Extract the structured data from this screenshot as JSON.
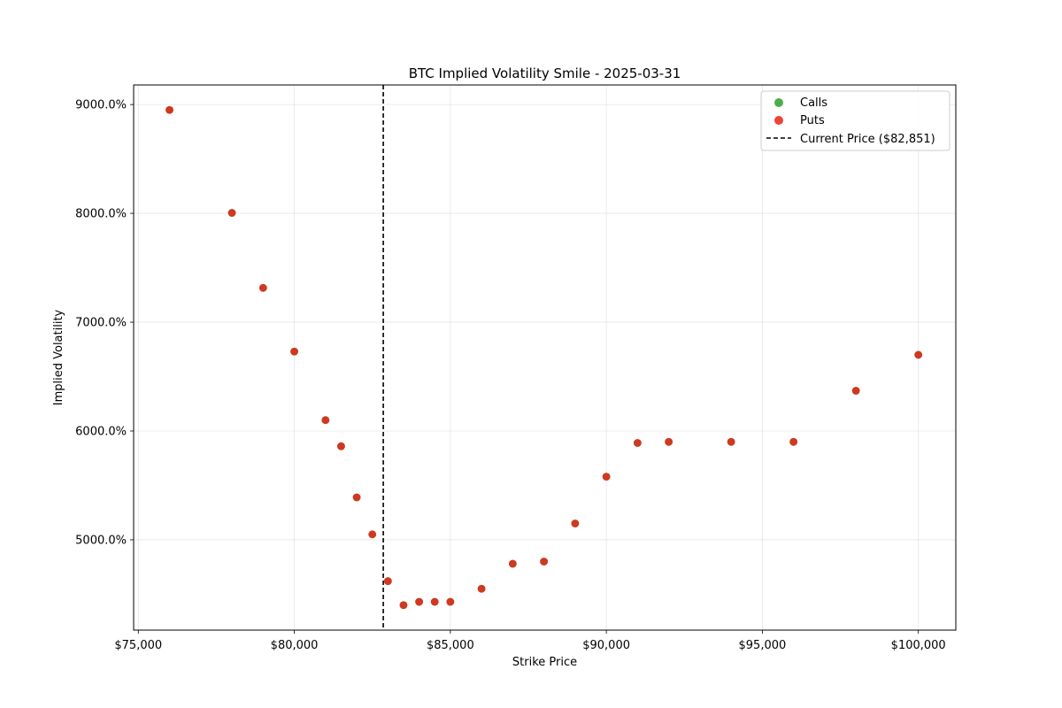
{
  "chart_data": {
    "type": "scatter",
    "title": "BTC Implied Volatility Smile - 2025-03-31",
    "xlabel": "Strike Price",
    "ylabel": "Implied Volatility",
    "xlim": [
      74850,
      101200
    ],
    "ylim": [
      4170,
      9180
    ],
    "grid": true,
    "legend_position": "top-right",
    "x_ticks": [
      {
        "value": 75000,
        "label": "$75,000"
      },
      {
        "value": 80000,
        "label": "$80,000"
      },
      {
        "value": 85000,
        "label": "$85,000"
      },
      {
        "value": 90000,
        "label": "$90,000"
      },
      {
        "value": 95000,
        "label": "$95,000"
      },
      {
        "value": 100000,
        "label": "$100,000"
      }
    ],
    "y_ticks": [
      {
        "value": 5000,
        "label": "5000.0%"
      },
      {
        "value": 6000,
        "label": "6000.0%"
      },
      {
        "value": 7000,
        "label": "7000.0%"
      },
      {
        "value": 8000,
        "label": "8000.0%"
      },
      {
        "value": 9000,
        "label": "9000.0%"
      }
    ],
    "series": [
      {
        "name": "Calls",
        "color": "#2ca02c",
        "points": [
          [
            76000,
            8950
          ],
          [
            78000,
            8005
          ],
          [
            79000,
            7315
          ],
          [
            80000,
            6730
          ],
          [
            81000,
            6100
          ],
          [
            81500,
            5860
          ],
          [
            82000,
            5390
          ],
          [
            82500,
            5050
          ],
          [
            83000,
            4620
          ],
          [
            83500,
            4400
          ],
          [
            84000,
            4430
          ],
          [
            84500,
            4430
          ],
          [
            85000,
            4430
          ],
          [
            86000,
            4550
          ],
          [
            87000,
            4780
          ],
          [
            88000,
            4800
          ],
          [
            89000,
            5150
          ],
          [
            90000,
            5580
          ],
          [
            91000,
            5890
          ],
          [
            92000,
            5900
          ],
          [
            94000,
            5900
          ],
          [
            96000,
            5900
          ],
          [
            98000,
            6370
          ],
          [
            100000,
            6700
          ]
        ]
      },
      {
        "name": "Puts",
        "color": "#e8231a",
        "points": [
          [
            76000,
            8950
          ],
          [
            78000,
            8005
          ],
          [
            79000,
            7315
          ],
          [
            80000,
            6730
          ],
          [
            81000,
            6100
          ],
          [
            81500,
            5860
          ],
          [
            82000,
            5390
          ],
          [
            82500,
            5050
          ],
          [
            83000,
            4620
          ],
          [
            83500,
            4400
          ],
          [
            84000,
            4430
          ],
          [
            84500,
            4430
          ],
          [
            85000,
            4430
          ],
          [
            86000,
            4550
          ],
          [
            87000,
            4780
          ],
          [
            88000,
            4800
          ],
          [
            89000,
            5150
          ],
          [
            90000,
            5580
          ],
          [
            91000,
            5890
          ],
          [
            92000,
            5900
          ],
          [
            94000,
            5900
          ],
          [
            96000,
            5900
          ],
          [
            98000,
            6370
          ],
          [
            100000,
            6700
          ]
        ]
      }
    ],
    "reference_line": {
      "name": "Current Price ($82,851)",
      "x": 82851,
      "color": "#000000",
      "style": "dashed"
    }
  }
}
